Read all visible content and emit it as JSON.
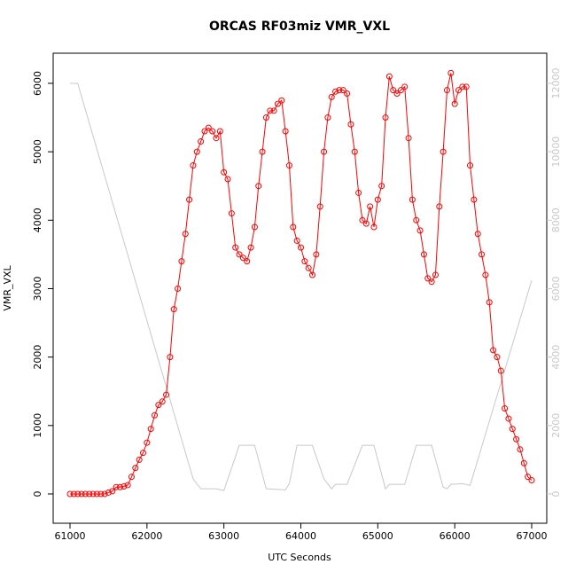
{
  "chart_data": {
    "type": "line",
    "title": "ORCAS RF03miz VMR_VXL",
    "x_label": "UTC Seconds",
    "y_label": "VMR_VXL",
    "xlim": [
      60781,
      67196
    ],
    "ylim": [
      -428,
      6440
    ],
    "y2lim": [
      -856,
      12880
    ],
    "xticks": [
      61000,
      62000,
      63000,
      64000,
      65000,
      66000,
      67000
    ],
    "yticks": [
      0,
      1000,
      2000,
      3000,
      4000,
      5000,
      6000
    ],
    "y2ticks": [
      0,
      2000,
      4000,
      6000,
      8000,
      10000,
      12000
    ],
    "series": [
      {
        "color": "#ff0000",
        "markers": true,
        "x": [
          61000,
          61050,
          61100,
          61150,
          61200,
          61250,
          61300,
          61350,
          61400,
          61450,
          61500,
          61550,
          61600,
          61650,
          61700,
          61750,
          61800,
          61850,
          61900,
          61950,
          62000,
          62050,
          62100,
          62150,
          62200,
          62250,
          62300,
          62350,
          62400,
          62450,
          62500,
          62550,
          62600,
          62650,
          62700,
          62750,
          62800,
          62850,
          62900,
          62950,
          63000,
          63050,
          63100,
          63150,
          63200,
          63250,
          63300,
          63350,
          63400,
          63450,
          63500,
          63550,
          63600,
          63650,
          63700,
          63750,
          63800,
          63850,
          63900,
          63950,
          64000,
          64050,
          64100,
          64150,
          64200,
          64250,
          64300,
          64350,
          64400,
          64450,
          64500,
          64550,
          64600,
          64650,
          64700,
          64750,
          64800,
          64850,
          64900,
          64950,
          65000,
          65050,
          65100,
          65150,
          65200,
          65250,
          65300,
          65350,
          65400,
          65450,
          65500,
          65550,
          65600,
          65650,
          65700,
          65750,
          65800,
          65850,
          65900,
          65950,
          66000,
          66050,
          66100,
          66150,
          66200,
          66250,
          66300,
          66350,
          66400,
          66450,
          66500,
          66550,
          66600,
          66650,
          66700,
          66750,
          66800,
          66850,
          66900,
          66950,
          67000
        ],
        "values": [
          0,
          0,
          0,
          0,
          0,
          0,
          0,
          0,
          0,
          0,
          20,
          40,
          100,
          100,
          110,
          130,
          250,
          380,
          500,
          600,
          750,
          950,
          1150,
          1300,
          1350,
          1450,
          2000,
          2700,
          3000,
          3400,
          3800,
          4300,
          4800,
          5000,
          5150,
          5300,
          5350,
          5300,
          5200,
          5300,
          4700,
          4600,
          4100,
          3600,
          3500,
          3450,
          3400,
          3600,
          3900,
          4500,
          5000,
          5500,
          5600,
          5600,
          5700,
          5750,
          5300,
          4800,
          3900,
          3700,
          3600,
          3400,
          3300,
          3200,
          3500,
          4200,
          5000,
          5500,
          5800,
          5880,
          5900,
          5900,
          5850,
          5400,
          5000,
          4400,
          4000,
          3950,
          4200,
          3900,
          4300,
          4500,
          5500,
          6100,
          5900,
          5850,
          5900,
          5950,
          5200,
          4300,
          4000,
          3850,
          3500,
          3150,
          3100,
          3200,
          4200,
          5000,
          5900,
          6150,
          5700,
          5900,
          5950,
          5950,
          4800,
          4300,
          3800,
          3500,
          3200,
          2800,
          2100,
          2000,
          1800,
          1250,
          1100,
          950,
          800,
          650,
          450,
          250,
          200
        ]
      },
      {
        "color": "#c8c8c8",
        "axis": "y2",
        "markers": false,
        "x": [
          61000,
          61100,
          62600,
          62700,
          62900,
          63000,
          63200,
          63400,
          63550,
          63800,
          63850,
          63950,
          64150,
          64300,
          64400,
          64450,
          64600,
          64800,
          64950,
          65100,
          65150,
          65350,
          65500,
          65700,
          65850,
          65900,
          65950,
          66100,
          66200,
          67000
        ],
        "values": [
          12000,
          12000,
          440,
          150,
          150,
          100,
          1420,
          1420,
          150,
          120,
          300,
          1420,
          1420,
          440,
          150,
          280,
          280,
          1420,
          1420,
          150,
          280,
          280,
          1420,
          1420,
          200,
          150,
          280,
          300,
          250,
          6240
        ]
      }
    ]
  }
}
